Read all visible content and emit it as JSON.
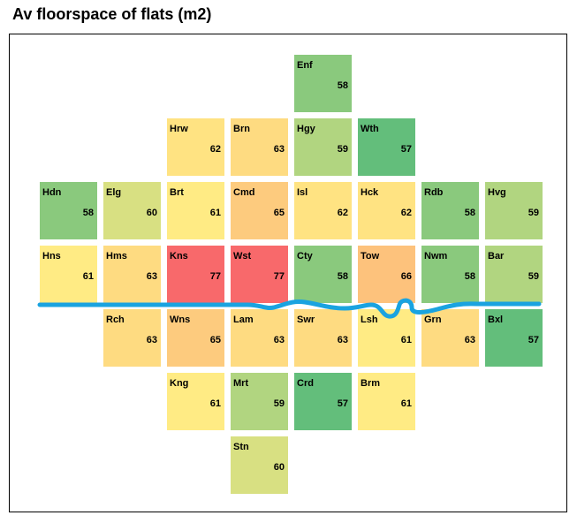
{
  "chart_data": {
    "type": "heatmap",
    "title": "Av floorspace of flats (m2)",
    "layout": "London borough tile grid",
    "river": {
      "name": "Thames",
      "color": "#1aa3e0"
    },
    "color_scale": {
      "min": 57,
      "max": 77,
      "low_color": "#63be7b",
      "mid_color": "#ffeb84",
      "high_color": "#f8696b"
    },
    "tiles": [
      {
        "code": "Enf",
        "value": 58,
        "row": 0,
        "col": 4
      },
      {
        "code": "Hrw",
        "value": 62,
        "row": 1,
        "col": 2
      },
      {
        "code": "Brn",
        "value": 63,
        "row": 1,
        "col": 3
      },
      {
        "code": "Hgy",
        "value": 59,
        "row": 1,
        "col": 4
      },
      {
        "code": "Wth",
        "value": 57,
        "row": 1,
        "col": 5
      },
      {
        "code": "Hdn",
        "value": 58,
        "row": 2,
        "col": 0
      },
      {
        "code": "Elg",
        "value": 60,
        "row": 2,
        "col": 1
      },
      {
        "code": "Brt",
        "value": 61,
        "row": 2,
        "col": 2
      },
      {
        "code": "Cmd",
        "value": 65,
        "row": 2,
        "col": 3
      },
      {
        "code": "Isl",
        "value": 62,
        "row": 2,
        "col": 4
      },
      {
        "code": "Hck",
        "value": 62,
        "row": 2,
        "col": 5
      },
      {
        "code": "Rdb",
        "value": 58,
        "row": 2,
        "col": 6
      },
      {
        "code": "Hvg",
        "value": 59,
        "row": 2,
        "col": 7
      },
      {
        "code": "Hns",
        "value": 61,
        "row": 3,
        "col": 0
      },
      {
        "code": "Hms",
        "value": 63,
        "row": 3,
        "col": 1
      },
      {
        "code": "Kns",
        "value": 77,
        "row": 3,
        "col": 2
      },
      {
        "code": "Wst",
        "value": 77,
        "row": 3,
        "col": 3
      },
      {
        "code": "Cty",
        "value": 58,
        "row": 3,
        "col": 4
      },
      {
        "code": "Tow",
        "value": 66,
        "row": 3,
        "col": 5
      },
      {
        "code": "Nwm",
        "value": 58,
        "row": 3,
        "col": 6
      },
      {
        "code": "Bar",
        "value": 59,
        "row": 3,
        "col": 7
      },
      {
        "code": "Rch",
        "value": 63,
        "row": 4,
        "col": 1
      },
      {
        "code": "Wns",
        "value": 65,
        "row": 4,
        "col": 2
      },
      {
        "code": "Lam",
        "value": 63,
        "row": 4,
        "col": 3
      },
      {
        "code": "Swr",
        "value": 63,
        "row": 4,
        "col": 4
      },
      {
        "code": "Lsh",
        "value": 61,
        "row": 4,
        "col": 5
      },
      {
        "code": "Grn",
        "value": 63,
        "row": 4,
        "col": 6
      },
      {
        "code": "Bxl",
        "value": 57,
        "row": 4,
        "col": 7
      },
      {
        "code": "Kng",
        "value": 61,
        "row": 5,
        "col": 2
      },
      {
        "code": "Mrt",
        "value": 59,
        "row": 5,
        "col": 3
      },
      {
        "code": "Crd",
        "value": 57,
        "row": 5,
        "col": 4
      },
      {
        "code": "Brm",
        "value": 61,
        "row": 5,
        "col": 5
      },
      {
        "code": "Stn",
        "value": 60,
        "row": 6,
        "col": 3
      }
    ]
  }
}
